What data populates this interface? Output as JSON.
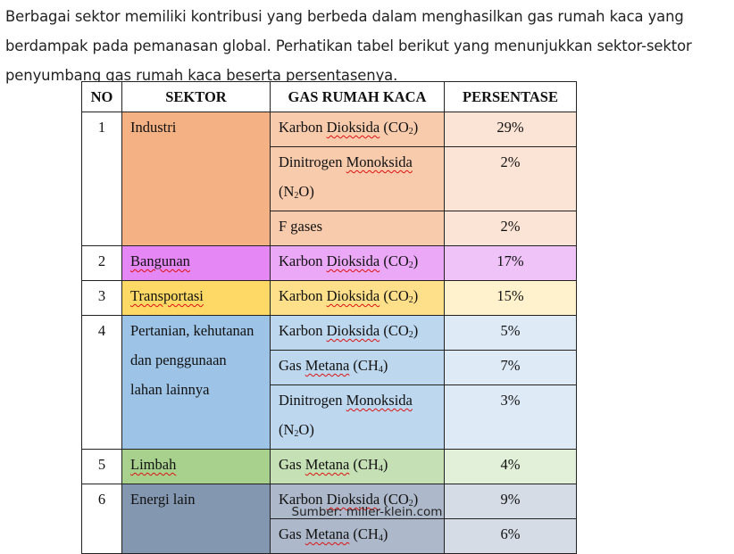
{
  "intro_text": "Berbagai sektor memiliki kontribusi yang berbeda dalam menghasilkan gas rumah kaca yang berdampak pada pemanasan global. Perhatikan tabel berikut yang menunjukkan sektor-sektor penyumbang gas rumah kaca beserta persentasenya.",
  "table": {
    "headers": [
      "NO",
      "SEKTOR",
      "GAS RUMAH KACA",
      "PERSENTASE"
    ],
    "groups": [
      {
        "no": "1",
        "sector": "Industri",
        "sector_color": "#f4b183",
        "gas_color": "#f8cbad",
        "pct_color": "#fbe4d5",
        "rows": [
          {
            "gas_pre": "Karbon ",
            "gas_wavy": "Dioksida",
            "gas_post": " (CO",
            "gas_sub": "2",
            "gas_end": ")",
            "pct": "29%"
          },
          {
            "gas_pre": "Dinitrogen ",
            "gas_wavy": "Monoksida",
            "gas_post": " (N",
            "gas_sub": "2",
            "gas_end": "O)",
            "pct": "2%"
          },
          {
            "gas_pre": "F gases",
            "gas_wavy": "",
            "gas_post": "",
            "gas_sub": "",
            "gas_end": "",
            "pct": "2%"
          }
        ]
      },
      {
        "no": "2",
        "sector": "Bangunan",
        "sector_wavy": true,
        "sector_color": "#e587f5",
        "gas_color": "#eba8f6",
        "pct_color": "#f0c3f8",
        "rows": [
          {
            "gas_pre": "Karbon ",
            "gas_wavy": "Dioksida",
            "gas_post": " (CO",
            "gas_sub": "2",
            "gas_end": ")",
            "pct": "17%"
          }
        ]
      },
      {
        "no": "3",
        "sector": "Transportasi",
        "sector_wavy": true,
        "sector_color": "#ffd966",
        "gas_color": "#ffe08a",
        "pct_color": "#fff2cc",
        "rows": [
          {
            "gas_pre": "Karbon ",
            "gas_wavy": "Dioksida",
            "gas_post": " (CO",
            "gas_sub": "2",
            "gas_end": ")",
            "pct": "15%"
          }
        ]
      },
      {
        "no": "4",
        "sector": "Pertanian, kehutanan dan penggunaan lahan lainnya",
        "sector_color": "#9dc3e6",
        "gas_color": "#bdd7ee",
        "pct_color": "#deebf7",
        "rows": [
          {
            "gas_pre": "Karbon ",
            "gas_wavy": "Dioksida",
            "gas_post": " (CO",
            "gas_sub": "2",
            "gas_end": ")",
            "pct": "5%"
          },
          {
            "gas_pre": "Gas ",
            "gas_wavy": "Metana",
            "gas_post": " (CH",
            "gas_sub": "4",
            "gas_end": ")",
            "pct": "7%"
          },
          {
            "gas_pre": "Dinitrogen ",
            "gas_wavy": "Monoksida",
            "gas_post": " (N",
            "gas_sub": "2",
            "gas_end": "O)",
            "pct": "3%"
          }
        ]
      },
      {
        "no": "5",
        "sector": "Limbah",
        "sector_wavy": true,
        "sector_color": "#a9d18e",
        "gas_color": "#c5e0b4",
        "pct_color": "#e2f0d9",
        "rows": [
          {
            "gas_pre": "Gas ",
            "gas_wavy": "Metana",
            "gas_post": " (CH",
            "gas_sub": "4",
            "gas_end": ")",
            "pct": "4%"
          }
        ]
      },
      {
        "no": "6",
        "sector": "Energi lain",
        "sector_color": "#8497b0",
        "gas_color": "#adb9ca",
        "pct_color": "#d6dce5",
        "rows": [
          {
            "gas_pre": "Karbon ",
            "gas_wavy": "Dioksida",
            "gas_post": " (CO",
            "gas_sub": "2",
            "gas_end": ")",
            "pct": "9%"
          },
          {
            "gas_pre": "Gas ",
            "gas_wavy": "Metana",
            "gas_post": " (CH",
            "gas_sub": "4",
            "gas_end": ")",
            "pct": "6%"
          }
        ]
      }
    ]
  },
  "source": "Sumber: miller-klein.com"
}
